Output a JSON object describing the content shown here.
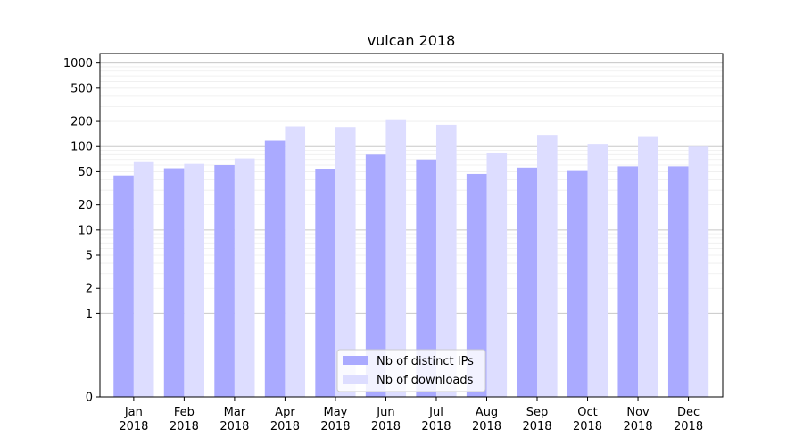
{
  "chart_data": {
    "type": "bar",
    "title": "vulcan 2018",
    "categories": [
      "Jan\n2018",
      "Feb\n2018",
      "Mar\n2018",
      "Apr\n2018",
      "May\n2018",
      "Jun\n2018",
      "Jul\n2018",
      "Aug\n2018",
      "Sep\n2018",
      "Oct\n2018",
      "Nov\n2018",
      "Dec\n2018"
    ],
    "series": [
      {
        "name": "Nb of distinct IPs",
        "color": "#aaaaff",
        "values": [
          45,
          55,
          60,
          118,
          54,
          80,
          70,
          47,
          56,
          51,
          58,
          58
        ]
      },
      {
        "name": "Nb of downloads",
        "color": "#ddddff",
        "values": [
          65,
          62,
          72,
          175,
          172,
          212,
          182,
          83,
          138,
          108,
          130,
          100
        ]
      }
    ],
    "y_scale": "symlog",
    "ylim": [
      0,
      1300
    ],
    "y_ticks": [
      0,
      1,
      2,
      5,
      10,
      20,
      50,
      100,
      200,
      500,
      1000
    ],
    "legend_position": "bottom-center",
    "grid": "horizontal"
  }
}
